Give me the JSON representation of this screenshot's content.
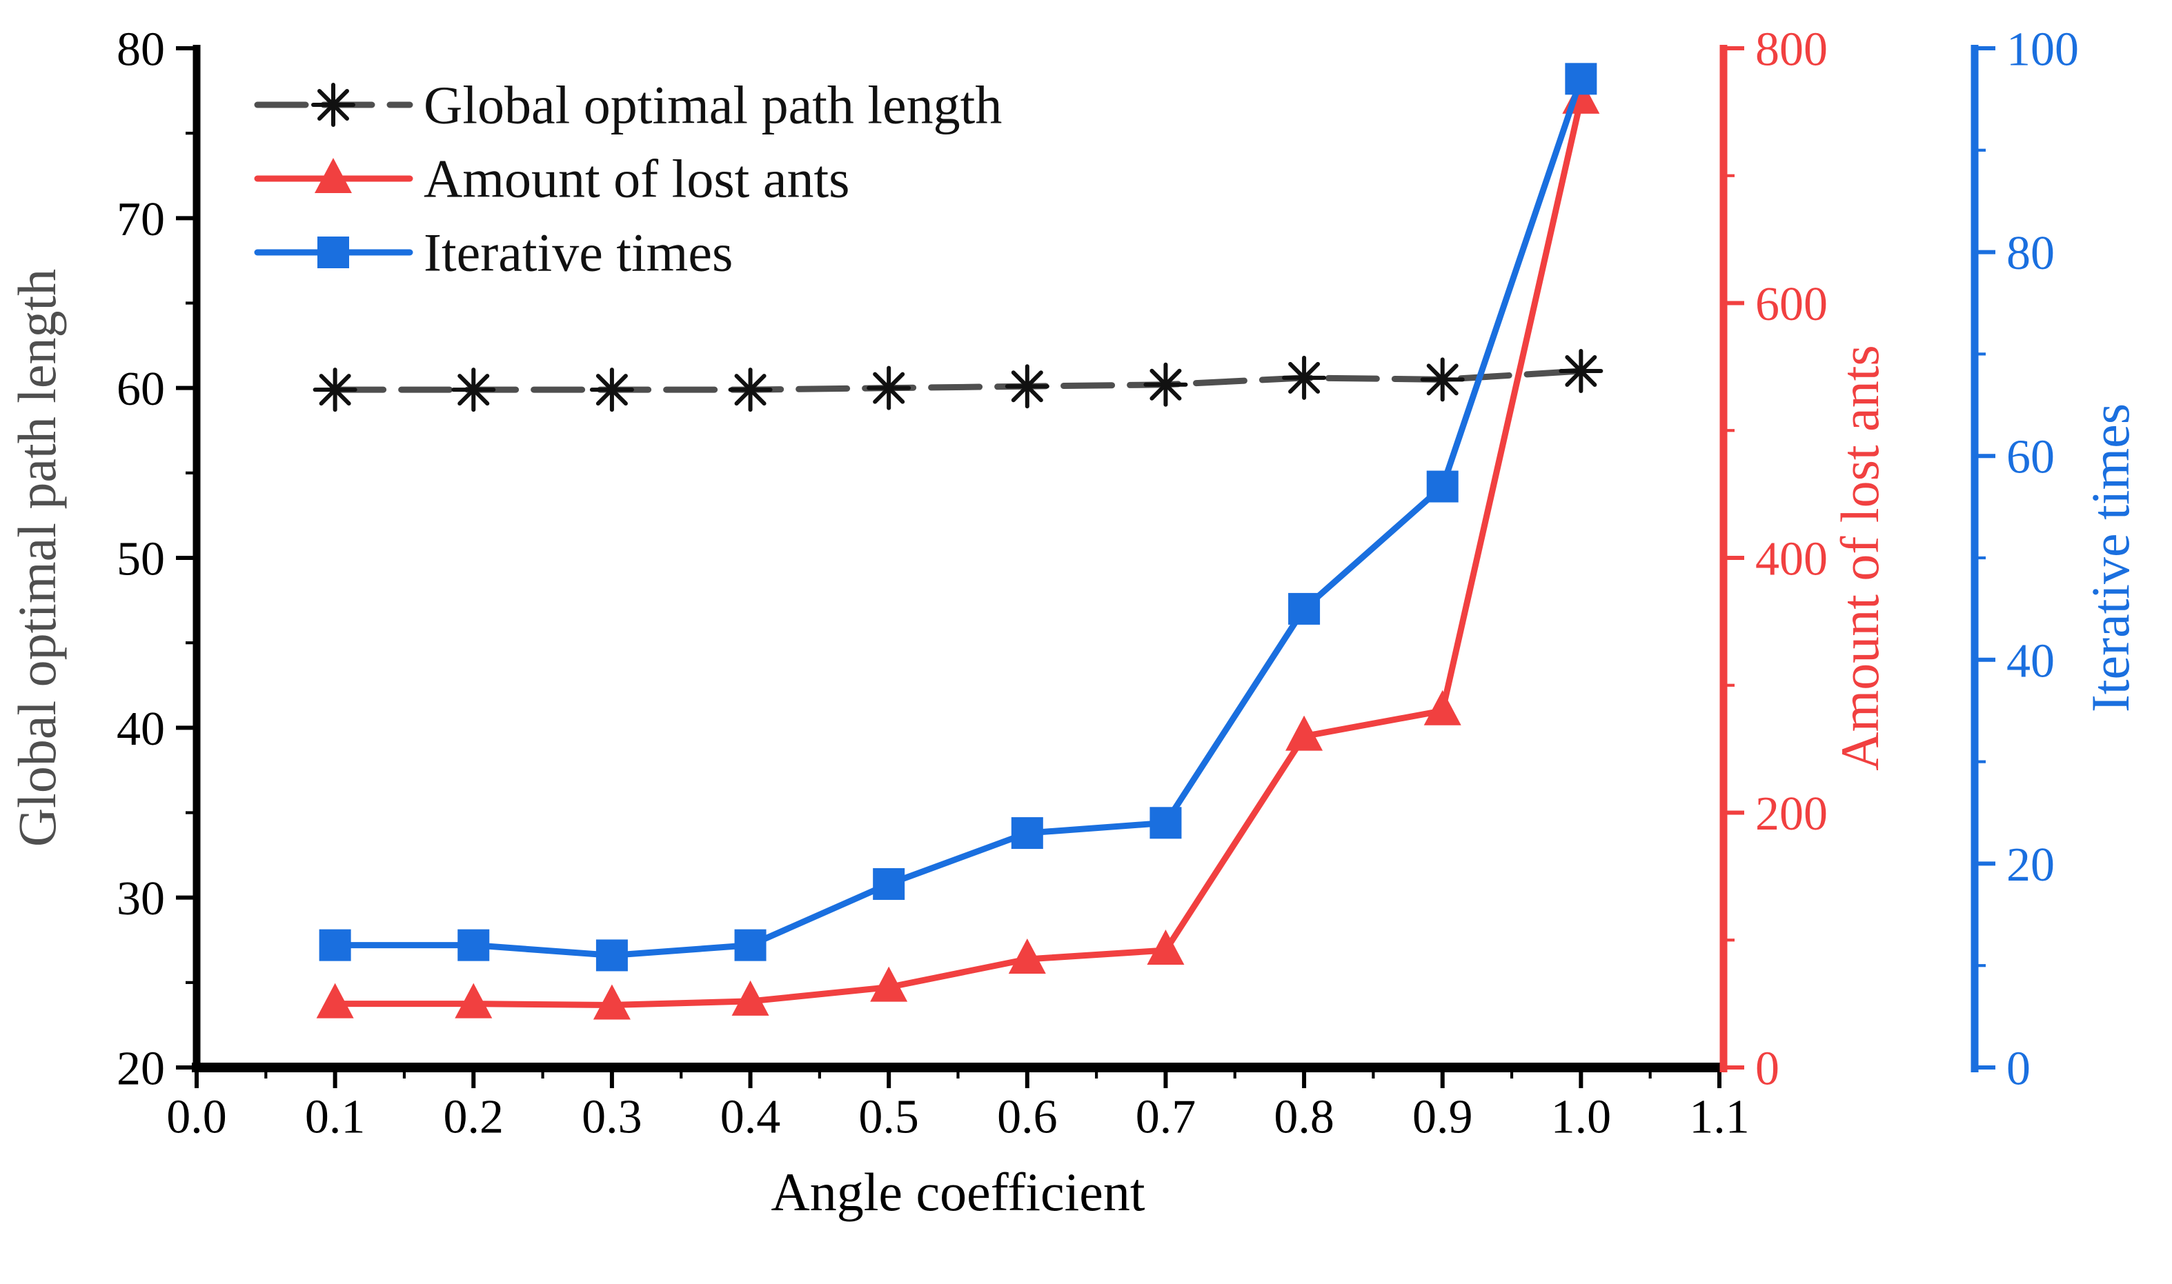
{
  "figure": {
    "background": "#ffffff"
  },
  "chart_data": {
    "type": "line",
    "title": "",
    "xlabel": "Angle coefficient",
    "x": [
      0.1,
      0.2,
      0.3,
      0.4,
      0.5,
      0.6,
      0.7,
      0.8,
      0.9,
      1.0
    ],
    "series": [
      {
        "name": "Global optimal path length",
        "axis": "left",
        "color": "#4f4f4f",
        "marker": "asterisk",
        "marker_color": "#111111",
        "line_style": "dashed",
        "values": [
          59.9,
          59.9,
          59.9,
          59.9,
          60.0,
          60.1,
          60.2,
          60.6,
          60.5,
          61.0
        ]
      },
      {
        "name": "Amount of lost ants",
        "axis": "right1",
        "color": "#F14040",
        "marker": "triangle-up",
        "marker_color": "#F14040",
        "line_style": "solid",
        "values": [
          50,
          50,
          49,
          52,
          63,
          85,
          92,
          260,
          280,
          760
        ]
      },
      {
        "name": "Iterative times",
        "axis": "right2",
        "color": "#1A6FDF",
        "marker": "square",
        "marker_color": "#1A6FDF",
        "line_style": "solid",
        "values": [
          12,
          12,
          11,
          12,
          18,
          23,
          24,
          45,
          57,
          97
        ]
      }
    ],
    "axes": {
      "bottom": {
        "label": "Angle coefficient",
        "min": 0.0,
        "max": 1.1,
        "major_step": 0.1,
        "minor_step": 0.05,
        "tick_decimals": 1,
        "color": "#000000",
        "title_color": "#000000"
      },
      "left": {
        "label": "Global optimal path length",
        "min": 20,
        "max": 80,
        "major_step": 10,
        "minor_step": 5,
        "tick_decimals": 0,
        "color": "#000000",
        "title_color": "#4f4f4f"
      },
      "right1": {
        "label": "Amount of lost ants",
        "min": 0,
        "max": 800,
        "major_step": 200,
        "minor_step": 100,
        "tick_decimals": 0,
        "color": "#F14040",
        "title_color": "#F14040"
      },
      "right2": {
        "label": "Iterative times",
        "min": 0,
        "max": 100,
        "major_step": 20,
        "minor_step": 10,
        "tick_decimals": 0,
        "color": "#1A6FDF",
        "title_color": "#1A6FDF"
      }
    },
    "legend": {
      "position": "top-left",
      "entries": [
        "Global optimal path length",
        "Amount of lost ants",
        "Iterative times"
      ]
    },
    "grid": false
  }
}
